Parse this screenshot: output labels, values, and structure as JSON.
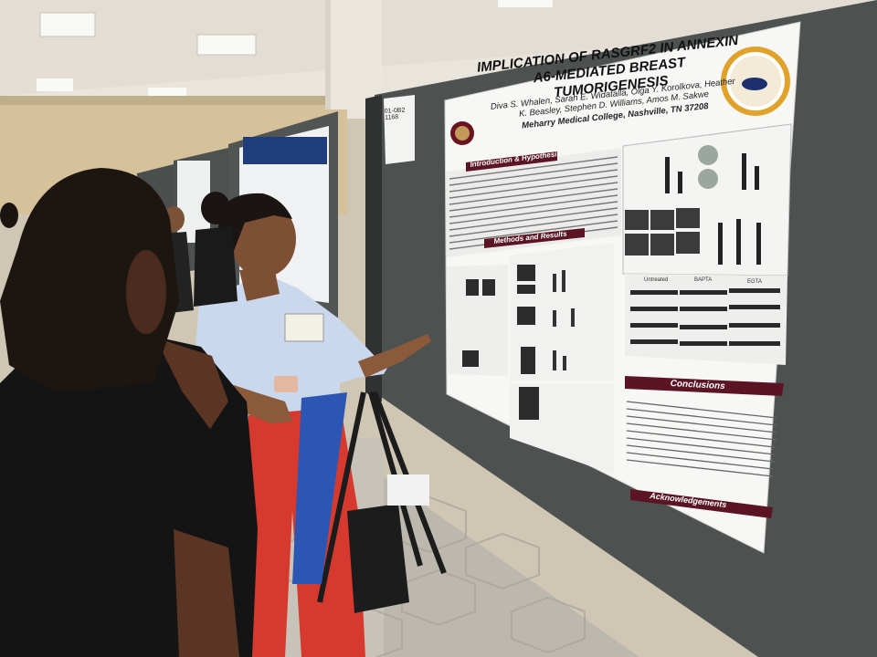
{
  "scene": {
    "description_free": true
  },
  "poster": {
    "title": "IMPLICATION OF RASGRF2 IN ANNEXIN A6-MEDIATED BREAST TUMORIGENESIS",
    "authors": "Diva S. Whalen, Sarah E. Widatalla, Olga Y. Korolkova, Heather K. Beasley, Stephen D. Williams, Amos M. Sakwe",
    "affiliation": "Meharry Medical College, Nashville, TN 37208",
    "sections": {
      "intro": "Introduction & Hypothesis",
      "methods": "Methods and Results",
      "conclusions": "Conclusions",
      "acknowledgements": "Acknowledgements"
    },
    "panel_labels": {
      "bapta": "BAPTA",
      "egta": "EGTA",
      "untreated": "Untreated"
    }
  },
  "board_tag": "01-0B2 1168",
  "colors": {
    "section_bar": "#5a1424",
    "board": "#4d514f",
    "logo_ring": "#e0a22a"
  }
}
